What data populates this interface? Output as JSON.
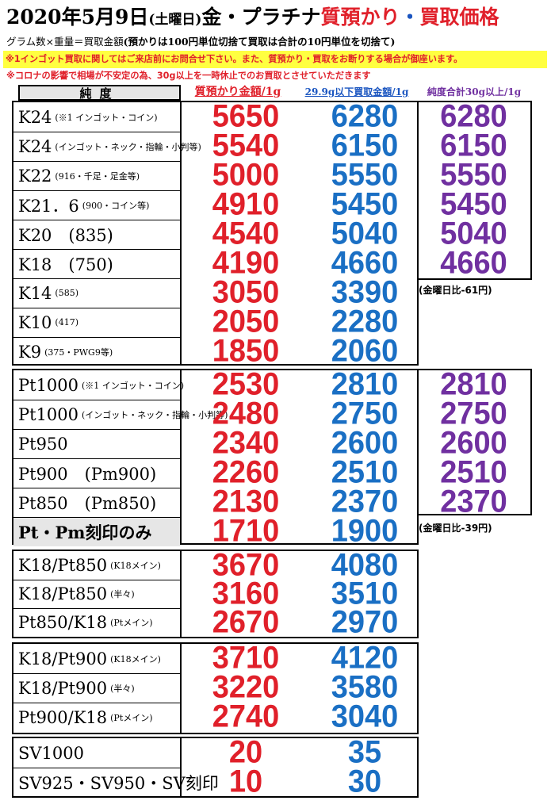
{
  "header": {
    "date": "2020年5月9日",
    "weekday": "(土曜日)",
    "subject": "金・プラチナ",
    "pawn_word": "質預かり",
    "dot": "・",
    "buy_word": "買取価格"
  },
  "formula": {
    "text": "グラム数×重量＝買取金額",
    "note": "(預かりは100円単位切捨て買取は合計の10円単位を切捨て)"
  },
  "notices": {
    "line1": "※1インゴット買取に関してはご来店前にお問合せ下さい。また、質預かり・買取をお断りする場合が御座います。",
    "line2": "※コロナの影響で相場が不安定の為、30g以上を一時休止でのお買取とさせていただきます"
  },
  "columns": {
    "purity": "純度",
    "pawn": "質預かり金額/1g",
    "under30": "29.9g以下買取金額/1g",
    "over30": "純度合計30g以上/1g"
  },
  "gold": {
    "rows": [
      {
        "label": "K24",
        "note": "(※1 インゴット・コイン)",
        "pawn": "5650",
        "under30": "6280",
        "over30": "6280"
      },
      {
        "label": "K24",
        "note": "(インゴット・ネック・指輪・小判等)",
        "pawn": "5540",
        "under30": "6150",
        "over30": "6150"
      },
      {
        "label": "K22",
        "note": "(916・千足・足金等)",
        "pawn": "5000",
        "under30": "5550",
        "over30": "5550"
      },
      {
        "label": "K21．6",
        "note": "(900・コイン等)",
        "pawn": "4910",
        "under30": "5450",
        "over30": "5450"
      },
      {
        "label": "K20　(835)",
        "note": "",
        "pawn": "4540",
        "under30": "5040",
        "over30": "5040"
      },
      {
        "label": "K18　(750)",
        "note": "",
        "pawn": "4190",
        "under30": "4660",
        "over30": "4660"
      },
      {
        "label": "K14",
        "note": "(585)",
        "pawn": "3050",
        "under30": "3390",
        "over30": ""
      },
      {
        "label": "K10",
        "note": "(417)",
        "pawn": "2050",
        "under30": "2280",
        "over30": ""
      },
      {
        "label": "K9",
        "note": "(375・PWG9等)",
        "pawn": "1850",
        "under30": "2060",
        "over30": ""
      }
    ],
    "compare": "(金曜日比-61円)"
  },
  "platinum": {
    "rows": [
      {
        "label": "Pt1000",
        "note": "(※1 インゴット・コイン)",
        "pawn": "2530",
        "under30": "2810",
        "over30": "2810"
      },
      {
        "label": "Pt1000",
        "note": "(インゴット・ネック・指輪・小判等)",
        "pawn": "2480",
        "under30": "2750",
        "over30": "2750"
      },
      {
        "label": "Pt950",
        "note": "",
        "pawn": "2340",
        "under30": "2600",
        "over30": "2600"
      },
      {
        "label": "Pt900　(Pm900)",
        "note": "",
        "pawn": "2260",
        "under30": "2510",
        "over30": "2510"
      },
      {
        "label": "Pt850　(Pm850)",
        "note": "",
        "pawn": "2130",
        "under30": "2370",
        "over30": "2370"
      },
      {
        "label": "Pt・Pm刻印のみ",
        "note": "",
        "pawn": "1710",
        "under30": "1900",
        "over30": ""
      }
    ],
    "compare": "(金曜日比-39円)"
  },
  "combo850": {
    "rows": [
      {
        "label": "K18/Pt850",
        "note": "(K18メイン)",
        "pawn": "3670",
        "under30": "4080"
      },
      {
        "label": "K18/Pt850",
        "note": "(半々)",
        "pawn": "3160",
        "under30": "3510"
      },
      {
        "label": "Pt850/K18",
        "note": "(Ptメイン)",
        "pawn": "2670",
        "under30": "2970"
      }
    ]
  },
  "combo900": {
    "rows": [
      {
        "label": "K18/Pt900",
        "note": "(K18メイン)",
        "pawn": "3710",
        "under30": "4120"
      },
      {
        "label": "K18/Pt900",
        "note": "(半々)",
        "pawn": "3220",
        "under30": "3580"
      },
      {
        "label": "Pt900/K18",
        "note": "(Ptメイン)",
        "pawn": "2740",
        "under30": "3040"
      }
    ]
  },
  "silver": {
    "rows": [
      {
        "label": "SV1000",
        "note": "",
        "pawn": "20",
        "under30": "35"
      },
      {
        "label": "SV925・SV950・SV刻印",
        "note": "",
        "pawn": "10",
        "under30": "30"
      }
    ]
  }
}
